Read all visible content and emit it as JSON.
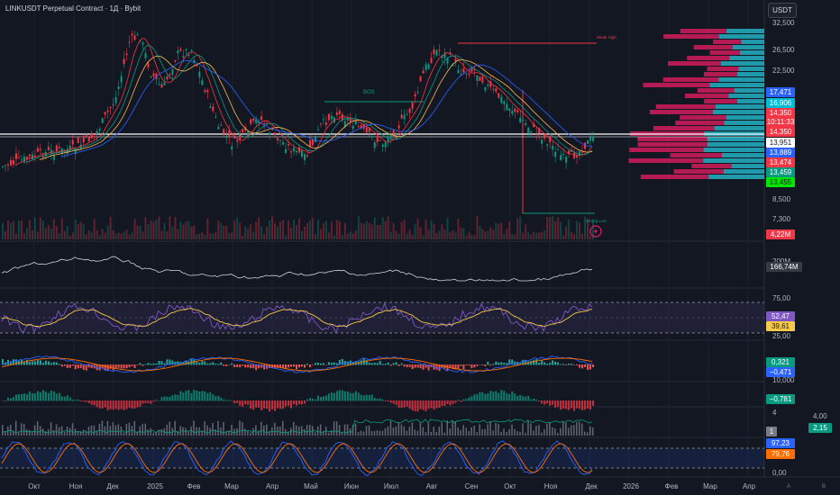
{
  "header": {
    "title": "LINKUSDT Perpetual Contract · 1Д · Bybit",
    "currency_button": "USDT"
  },
  "price_axis": {
    "labels": [
      "32,500",
      "26,500",
      "22,500",
      "8,500",
      "7,300"
    ],
    "badges": [
      {
        "text": "17,471",
        "color": "#2962ff"
      },
      {
        "text": "16,906",
        "color": "#00bcd4"
      },
      {
        "text": "14,350",
        "color": "#f23645"
      },
      {
        "text": "10:11:33",
        "color": "#f23645"
      },
      {
        "text": "14,350",
        "color": "#f23645"
      },
      {
        "text": "13,951",
        "color": "#ffffff"
      },
      {
        "text": "13,889",
        "color": "#2962ff"
      },
      {
        "text": "13,474",
        "color": "#f23645"
      },
      {
        "text": "13,459",
        "color": "#089981"
      },
      {
        "text": "13,455",
        "color": "#00e600"
      }
    ],
    "volume_badge": "4,22M"
  },
  "chart_annotations": {
    "bos": "BOS",
    "weak_high": "Weak High",
    "strong_low": "Strong Low"
  },
  "indicator_panels": {
    "obv": {
      "value": "166,74M",
      "axis_label": "200M"
    },
    "rsi": {
      "upper": "75,00",
      "lower": "25,00",
      "values": [
        "52,47",
        "39,61"
      ]
    },
    "macd": {
      "axis": "10,000",
      "values": [
        "0,321",
        "−0,471"
      ]
    },
    "histogram": {
      "value": "−0,781"
    },
    "atr": {
      "axis_top": "4",
      "right_axis": "4,00",
      "value": "2,15",
      "badge": "1"
    },
    "stoch": {
      "values": [
        "97,23",
        "79,76"
      ],
      "zero": "0,00"
    }
  },
  "time_axis": {
    "months": [
      "Окт",
      "Ноя",
      "Дек",
      "2025",
      "Фев",
      "Мар",
      "Апр",
      "Май",
      "Июн",
      "Июл",
      "Авг",
      "Сен",
      "Окт",
      "Ноя",
      "Дек",
      "2026",
      "Фев",
      "Мар",
      "Апр"
    ],
    "corner": [
      "A",
      "B"
    ]
  }
}
